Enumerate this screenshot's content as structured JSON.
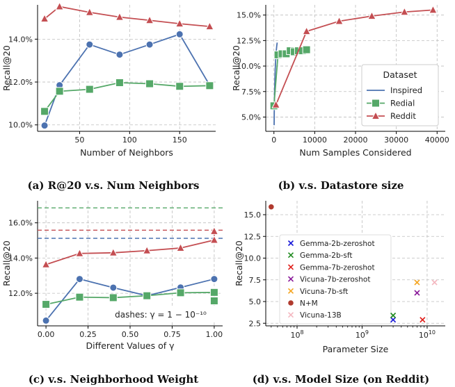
{
  "colors": {
    "inspired": "#4c72b0",
    "redial": "#55a868",
    "reddit": "#c44e52",
    "grid": "#bdbdbd"
  },
  "chart_data": [
    {
      "id": "a",
      "type": "line",
      "caption": "(a) R@20 v.s. Num Neighbors",
      "xlabel": "Number of Neighbors",
      "ylabel": "Recall@20",
      "xlim": [
        8,
        186
      ],
      "ylim": [
        0.097,
        0.156
      ],
      "xticks": [
        50,
        100,
        150
      ],
      "xticklabels": [
        "50",
        "100",
        "150"
      ],
      "yticks": [
        0.1,
        0.12,
        0.14
      ],
      "yticklabels": [
        "10.0%",
        "12.0%",
        "14.0%"
      ],
      "grid": true,
      "series": [
        {
          "key": "inspired",
          "marker": "circle",
          "points": [
            [
              15,
              0.0997
            ],
            [
              30,
              0.1185
            ],
            [
              60,
              0.1375
            ],
            [
              90,
              0.1328
            ],
            [
              120,
              0.1375
            ],
            [
              150,
              0.1423
            ],
            [
              180,
              0.1185
            ]
          ]
        },
        {
          "key": "redial",
          "marker": "square",
          "points": [
            [
              15,
              0.1063
            ],
            [
              30,
              0.1157
            ],
            [
              60,
              0.1166
            ],
            [
              90,
              0.1197
            ],
            [
              120,
              0.1192
            ],
            [
              150,
              0.118
            ],
            [
              180,
              0.1183
            ]
          ]
        },
        {
          "key": "reddit",
          "marker": "triangle",
          "points": [
            [
              15,
              0.1495
            ],
            [
              30,
              0.1552
            ],
            [
              60,
              0.1525
            ],
            [
              90,
              0.1503
            ],
            [
              120,
              0.1488
            ],
            [
              150,
              0.1472
            ],
            [
              180,
              0.1459
            ]
          ]
        }
      ]
    },
    {
      "id": "b",
      "type": "line",
      "caption": "(b) v.s. Datastore size",
      "xlabel": "Num Samples Considered",
      "ylabel": "Recall@20",
      "xlim": [
        -2000,
        42000
      ],
      "ylim": [
        0.036,
        0.16
      ],
      "xticks": [
        0,
        10000,
        20000,
        30000,
        40000
      ],
      "xticklabels": [
        "0",
        "10000",
        "20000",
        "30000",
        "40000"
      ],
      "yticks": [
        0.05,
        0.075,
        0.1,
        0.125,
        0.15
      ],
      "yticklabels": [
        "5.0%",
        "7.5%",
        "10.0%",
        "12.5%",
        "15.0%"
      ],
      "grid": true,
      "legend": {
        "title": "Dataset",
        "entries": [
          "Inspired",
          "Redial",
          "Reddit"
        ],
        "position": "lower-right"
      },
      "series": [
        {
          "key": "inspired",
          "marker": "none",
          "points": [
            [
              50,
              0.042
            ],
            [
              100,
              0.062
            ],
            [
              200,
              0.08
            ],
            [
              300,
              0.095
            ],
            [
              400,
              0.104
            ],
            [
              500,
              0.11
            ],
            [
              600,
              0.116
            ],
            [
              700,
              0.12
            ],
            [
              800,
              0.123
            ]
          ]
        },
        {
          "key": "redial",
          "marker": "square",
          "points": [
            [
              0,
              0.061
            ],
            [
              1000,
              0.111
            ],
            [
              2000,
              0.112
            ],
            [
              3000,
              0.112
            ],
            [
              4000,
              0.115
            ],
            [
              5000,
              0.114
            ],
            [
              6000,
              0.115
            ],
            [
              7000,
              0.115
            ],
            [
              8000,
              0.116
            ]
          ]
        },
        {
          "key": "reddit",
          "marker": "triangle",
          "points": [
            [
              500,
              0.062
            ],
            [
              8000,
              0.134
            ],
            [
              16000,
              0.144
            ],
            [
              24000,
              0.149
            ],
            [
              32000,
              0.153
            ],
            [
              39000,
              0.155
            ]
          ]
        }
      ]
    },
    {
      "id": "c",
      "type": "line",
      "caption": "(c) v.s. Neighborhood Weight",
      "xlabel": "Different Values of γ",
      "ylabel": "Recall@20",
      "xlim": [
        -0.05,
        1.05
      ],
      "ylim": [
        0.1015,
        0.1725
      ],
      "xticks": [
        0,
        0.25,
        0.5,
        0.75,
        1.0
      ],
      "xticklabels": [
        "0.00",
        "0.25",
        "0.50",
        "0.75",
        "1.00"
      ],
      "yticks": [
        0.12,
        0.14,
        0.16
      ],
      "yticklabels": [
        "12.0%",
        "14.0%",
        "16.0%"
      ],
      "grid": true,
      "annotation": "dashes: γ = 1 − 10⁻¹⁰",
      "hlines": [
        {
          "key": "redial",
          "y": 0.1685
        },
        {
          "key": "reddit",
          "y": 0.1558
        },
        {
          "key": "inspired",
          "y": 0.1512
        }
      ],
      "series": [
        {
          "key": "inspired",
          "marker": "circle",
          "points": [
            [
              0,
              0.1045
            ],
            [
              0.2,
              0.1281
            ],
            [
              0.4,
              0.1232
            ],
            [
              0.6,
              0.1186
            ],
            [
              0.8,
              0.1233
            ],
            [
              1.0,
              0.1281
            ]
          ]
        },
        {
          "key": "redial",
          "marker": "square",
          "points": [
            [
              0,
              0.1137
            ],
            [
              0.2,
              0.1178
            ],
            [
              0.4,
              0.1175
            ],
            [
              0.6,
              0.1186
            ],
            [
              0.8,
              0.1203
            ],
            [
              1.0,
              0.1205
            ],
            [
              1.0,
              0.1157
            ]
          ]
        },
        {
          "key": "reddit",
          "marker": "triangle",
          "points": [
            [
              0,
              0.1363
            ],
            [
              0.2,
              0.1426
            ],
            [
              0.4,
              0.143
            ],
            [
              0.6,
              0.1442
            ],
            [
              0.8,
              0.1457
            ],
            [
              1.0,
              0.1502
            ],
            [
              1.0,
              0.1552
            ]
          ]
        }
      ]
    },
    {
      "id": "d",
      "type": "scatter",
      "caption": "(d) v.s. Model Size (on Reddit)",
      "xlabel": "Parameter Size",
      "ylabel": "Recall@20",
      "xscale": "log",
      "xlim": [
        33000000.0,
        19000000000.0
      ],
      "ylim": [
        2.2,
        16.6
      ],
      "xticks": [
        100000000.0,
        1000000000.0,
        10000000000.0
      ],
      "yticks": [
        2.5,
        5.0,
        7.5,
        10.0,
        12.5,
        15.0
      ],
      "yticklabels": [
        "2.5",
        "5.0",
        "7.5",
        "10.0",
        "12.5",
        "15.0"
      ],
      "grid": true,
      "legend": {
        "position": "center-left"
      },
      "points": [
        {
          "label": "Gemma-2b-zeroshot",
          "color": "#1a1ad8",
          "marker": "x",
          "x": 3000000000.0,
          "y": 2.9
        },
        {
          "label": "Gemma-2b-sft",
          "color": "#1f8a1f",
          "marker": "x",
          "x": 3000000000.0,
          "y": 3.4
        },
        {
          "label": "Gemma-7b-zeroshot",
          "color": "#e0201c",
          "marker": "x",
          "x": 8500000000.0,
          "y": 2.9
        },
        {
          "label": "Vicuna-7b-zeroshot",
          "color": "#8a1a9a",
          "marker": "x",
          "x": 7000000000.0,
          "y": 6.0
        },
        {
          "label": "Vicuna-7b-sft",
          "color": "#f5a623",
          "marker": "x",
          "x": 7000000000.0,
          "y": 7.2
        },
        {
          "label": "N+M",
          "color": "#b03a2e",
          "marker": "dot",
          "x": 40000000.0,
          "y": 15.9
        },
        {
          "label": "Vicuna-13B",
          "color": "#f4b8c0",
          "marker": "x",
          "x": 13000000000.0,
          "y": 7.2
        }
      ]
    }
  ]
}
